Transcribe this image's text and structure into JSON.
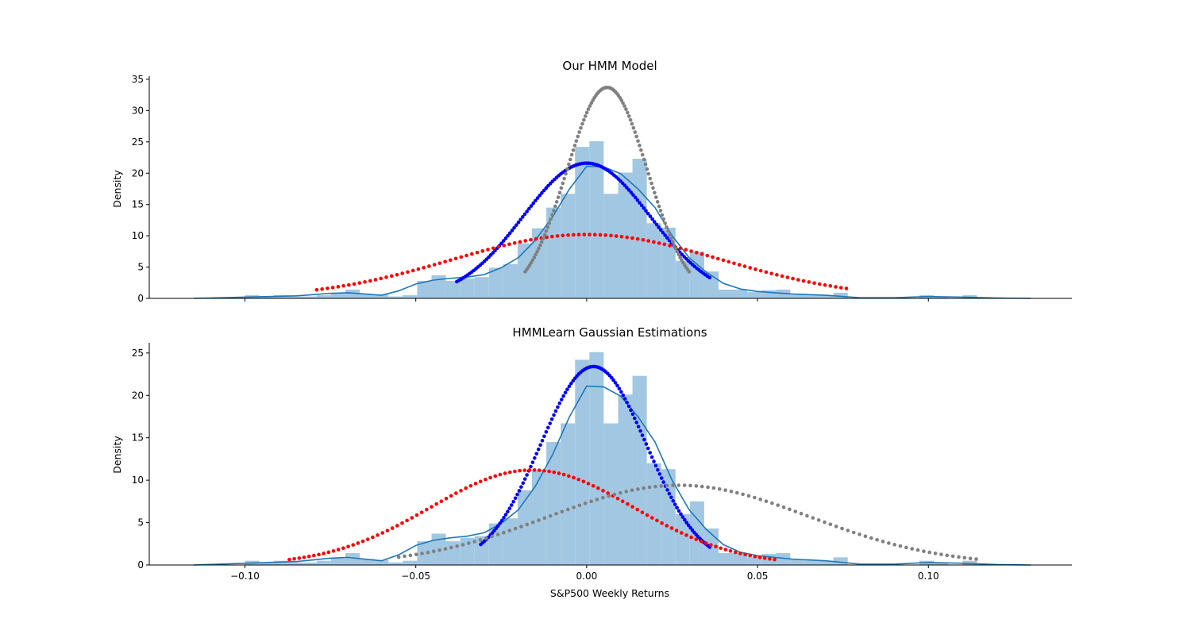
{
  "colors": {
    "hist": "#a2c7e2",
    "kde": "#1f77b4",
    "blue": "#0000ff",
    "red": "#ff0000",
    "gray": "#808080",
    "axis": "#000000"
  },
  "chart_data": [
    {
      "type": "histogram+kde+gaussian-dots",
      "title": "Our HMM Model",
      "xlabel": "",
      "ylabel": "Density",
      "xlim": [
        -0.128,
        0.142
      ],
      "ylim": [
        0,
        35.5
      ],
      "xticks": [
        -0.1,
        -0.05,
        0.0,
        0.05,
        0.1
      ],
      "xtick_labels": [],
      "yticks": [
        0,
        5,
        10,
        15,
        20,
        25,
        30,
        35
      ],
      "ytick_labels": [
        "0",
        "5",
        "10",
        "15",
        "20",
        "25",
        "30",
        "35"
      ],
      "histogram": {
        "bin_width": 0.0042,
        "bins": [
          {
            "x0": -0.1,
            "h": 0.5
          },
          {
            "x0": -0.0958,
            "h": 0.3
          },
          {
            "x0": -0.0916,
            "h": 0.5
          },
          {
            "x0": -0.0874,
            "h": 0.3
          },
          {
            "x0": -0.0832,
            "h": 0.3
          },
          {
            "x0": -0.079,
            "h": 0.5
          },
          {
            "x0": -0.0748,
            "h": 0.8
          },
          {
            "x0": -0.0706,
            "h": 1.4
          },
          {
            "x0": -0.0664,
            "h": 0.7
          },
          {
            "x0": -0.0622,
            "h": 0.6
          },
          {
            "x0": -0.058,
            "h": 0.3
          },
          {
            "x0": -0.0538,
            "h": 0.5
          },
          {
            "x0": -0.0496,
            "h": 2.8
          },
          {
            "x0": -0.0454,
            "h": 3.7
          },
          {
            "x0": -0.0412,
            "h": 2.8
          },
          {
            "x0": -0.037,
            "h": 3.2
          },
          {
            "x0": -0.0328,
            "h": 3.4
          },
          {
            "x0": -0.0286,
            "h": 4.9
          },
          {
            "x0": -0.0244,
            "h": 5.5
          },
          {
            "x0": -0.0202,
            "h": 8.8
          },
          {
            "x0": -0.016,
            "h": 11.2
          },
          {
            "x0": -0.0118,
            "h": 14.5
          },
          {
            "x0": -0.0076,
            "h": 16.7
          },
          {
            "x0": -0.0034,
            "h": 24.2
          },
          {
            "x0": 0.0008,
            "h": 25.1
          },
          {
            "x0": 0.005,
            "h": 16.7
          },
          {
            "x0": 0.0092,
            "h": 20.1
          },
          {
            "x0": 0.0134,
            "h": 22.3
          },
          {
            "x0": 0.0176,
            "h": 12.0
          },
          {
            "x0": 0.0218,
            "h": 11.3
          },
          {
            "x0": 0.026,
            "h": 6.0
          },
          {
            "x0": 0.0302,
            "h": 7.5
          },
          {
            "x0": 0.0344,
            "h": 4.3
          },
          {
            "x0": 0.0386,
            "h": 1.4
          },
          {
            "x0": 0.0428,
            "h": 1.4
          },
          {
            "x0": 0.047,
            "h": 1.0
          },
          {
            "x0": 0.0512,
            "h": 1.3
          },
          {
            "x0": 0.0554,
            "h": 1.4
          },
          {
            "x0": 0.0596,
            "h": 0.6
          },
          {
            "x0": 0.0638,
            "h": 0.6
          },
          {
            "x0": 0.068,
            "h": 0.5
          },
          {
            "x0": 0.0722,
            "h": 0.9
          },
          {
            "x0": 0.0974,
            "h": 0.5
          },
          {
            "x0": 0.1016,
            "h": 0.3
          },
          {
            "x0": 0.11,
            "h": 0.5
          }
        ]
      },
      "kde": {
        "x": [
          -0.115,
          -0.1,
          -0.085,
          -0.075,
          -0.07,
          -0.065,
          -0.06,
          -0.055,
          -0.05,
          -0.045,
          -0.04,
          -0.035,
          -0.03,
          -0.025,
          -0.02,
          -0.015,
          -0.01,
          -0.005,
          0.0,
          0.005,
          0.01,
          0.015,
          0.02,
          0.025,
          0.03,
          0.035,
          0.04,
          0.045,
          0.05,
          0.055,
          0.06,
          0.07,
          0.08,
          0.09,
          0.1,
          0.11,
          0.12,
          0.13
        ],
        "y": [
          0.0,
          0.2,
          0.4,
          0.8,
          0.9,
          0.7,
          0.5,
          1.2,
          2.3,
          2.9,
          3.2,
          3.4,
          3.8,
          4.9,
          6.5,
          9.3,
          13.0,
          17.5,
          21.1,
          21.0,
          19.9,
          17.5,
          14.5,
          10.0,
          6.5,
          4.2,
          2.4,
          1.5,
          1.1,
          0.9,
          0.7,
          0.5,
          0.1,
          0.1,
          0.3,
          0.2,
          0.05,
          0.0
        ]
      },
      "gaussians": [
        {
          "color_key": "blue",
          "mean": 0.0,
          "sd": 0.0186,
          "peak": 21.6,
          "x_range": [
            -0.038,
            0.036
          ],
          "n_points": 120
        },
        {
          "color_key": "red",
          "mean": 0.0,
          "sd": 0.0394,
          "peak": 10.2,
          "x_range": [
            -0.079,
            0.076
          ],
          "n_points": 100
        },
        {
          "color_key": "gray",
          "mean": 0.006,
          "sd": 0.0118,
          "peak": 33.7,
          "x_range": [
            -0.018,
            0.03
          ],
          "n_points": 110
        }
      ]
    },
    {
      "type": "histogram+kde+gaussian-dots",
      "title": "HMMLearn Gaussian Estimations",
      "xlabel": "S&P500 Weekly Returns",
      "ylabel": "Density",
      "xlim": [
        -0.128,
        0.142
      ],
      "ylim": [
        0,
        26.2
      ],
      "xticks": [
        -0.1,
        -0.05,
        0.0,
        0.05,
        0.1
      ],
      "xtick_labels": [
        "−0.10",
        "−0.05",
        "0.00",
        "0.05",
        "0.10"
      ],
      "yticks": [
        0,
        5,
        10,
        15,
        20,
        25
      ],
      "ytick_labels": [
        "0",
        "5",
        "10",
        "15",
        "20",
        "25"
      ],
      "histogram": {
        "bin_width": 0.0042,
        "bins": [
          {
            "x0": -0.1,
            "h": 0.5
          },
          {
            "x0": -0.0958,
            "h": 0.3
          },
          {
            "x0": -0.0916,
            "h": 0.5
          },
          {
            "x0": -0.0874,
            "h": 0.3
          },
          {
            "x0": -0.0832,
            "h": 0.3
          },
          {
            "x0": -0.079,
            "h": 0.5
          },
          {
            "x0": -0.0748,
            "h": 0.8
          },
          {
            "x0": -0.0706,
            "h": 1.4
          },
          {
            "x0": -0.0664,
            "h": 0.7
          },
          {
            "x0": -0.0622,
            "h": 0.6
          },
          {
            "x0": -0.058,
            "h": 0.3
          },
          {
            "x0": -0.0538,
            "h": 0.5
          },
          {
            "x0": -0.0496,
            "h": 2.8
          },
          {
            "x0": -0.0454,
            "h": 3.7
          },
          {
            "x0": -0.0412,
            "h": 2.8
          },
          {
            "x0": -0.037,
            "h": 3.2
          },
          {
            "x0": -0.0328,
            "h": 3.4
          },
          {
            "x0": -0.0286,
            "h": 4.9
          },
          {
            "x0": -0.0244,
            "h": 5.5
          },
          {
            "x0": -0.0202,
            "h": 8.8
          },
          {
            "x0": -0.016,
            "h": 11.2
          },
          {
            "x0": -0.0118,
            "h": 14.5
          },
          {
            "x0": -0.0076,
            "h": 16.7
          },
          {
            "x0": -0.0034,
            "h": 24.2
          },
          {
            "x0": 0.0008,
            "h": 25.1
          },
          {
            "x0": 0.005,
            "h": 16.7
          },
          {
            "x0": 0.0092,
            "h": 20.1
          },
          {
            "x0": 0.0134,
            "h": 22.3
          },
          {
            "x0": 0.0176,
            "h": 12.0
          },
          {
            "x0": 0.0218,
            "h": 11.3
          },
          {
            "x0": 0.026,
            "h": 6.0
          },
          {
            "x0": 0.0302,
            "h": 7.5
          },
          {
            "x0": 0.0344,
            "h": 4.3
          },
          {
            "x0": 0.0386,
            "h": 1.4
          },
          {
            "x0": 0.0428,
            "h": 1.4
          },
          {
            "x0": 0.047,
            "h": 1.0
          },
          {
            "x0": 0.0512,
            "h": 1.3
          },
          {
            "x0": 0.0554,
            "h": 1.4
          },
          {
            "x0": 0.0596,
            "h": 0.6
          },
          {
            "x0": 0.0638,
            "h": 0.6
          },
          {
            "x0": 0.068,
            "h": 0.5
          },
          {
            "x0": 0.0722,
            "h": 0.9
          },
          {
            "x0": 0.0974,
            "h": 0.5
          },
          {
            "x0": 0.1016,
            "h": 0.3
          },
          {
            "x0": 0.11,
            "h": 0.5
          }
        ]
      },
      "kde": {
        "x": [
          -0.115,
          -0.1,
          -0.085,
          -0.075,
          -0.07,
          -0.065,
          -0.06,
          -0.055,
          -0.05,
          -0.045,
          -0.04,
          -0.035,
          -0.03,
          -0.025,
          -0.02,
          -0.015,
          -0.01,
          -0.005,
          0.0,
          0.005,
          0.01,
          0.015,
          0.02,
          0.025,
          0.03,
          0.035,
          0.04,
          0.045,
          0.05,
          0.055,
          0.06,
          0.07,
          0.08,
          0.09,
          0.1,
          0.11,
          0.12,
          0.13
        ],
        "y": [
          0.0,
          0.2,
          0.4,
          0.8,
          0.9,
          0.7,
          0.5,
          1.2,
          2.3,
          2.9,
          3.2,
          3.4,
          3.8,
          4.9,
          6.5,
          9.3,
          13.0,
          17.5,
          21.1,
          21.0,
          19.9,
          17.5,
          14.5,
          10.0,
          6.5,
          4.2,
          2.4,
          1.5,
          1.1,
          0.9,
          0.7,
          0.5,
          0.1,
          0.1,
          0.3,
          0.2,
          0.05,
          0.0
        ]
      },
      "gaussians": [
        {
          "color_key": "blue",
          "mean": 0.002,
          "sd": 0.0155,
          "peak": 23.4,
          "x_range": [
            -0.031,
            0.036
          ],
          "n_points": 120
        },
        {
          "color_key": "red",
          "mean": -0.016,
          "sd": 0.0297,
          "peak": 11.2,
          "x_range": [
            -0.087,
            0.055
          ],
          "n_points": 100
        },
        {
          "color_key": "gray",
          "mean": 0.027,
          "sd": 0.0382,
          "peak": 9.4,
          "x_range": [
            -0.055,
            0.114
          ],
          "n_points": 100
        }
      ]
    }
  ]
}
